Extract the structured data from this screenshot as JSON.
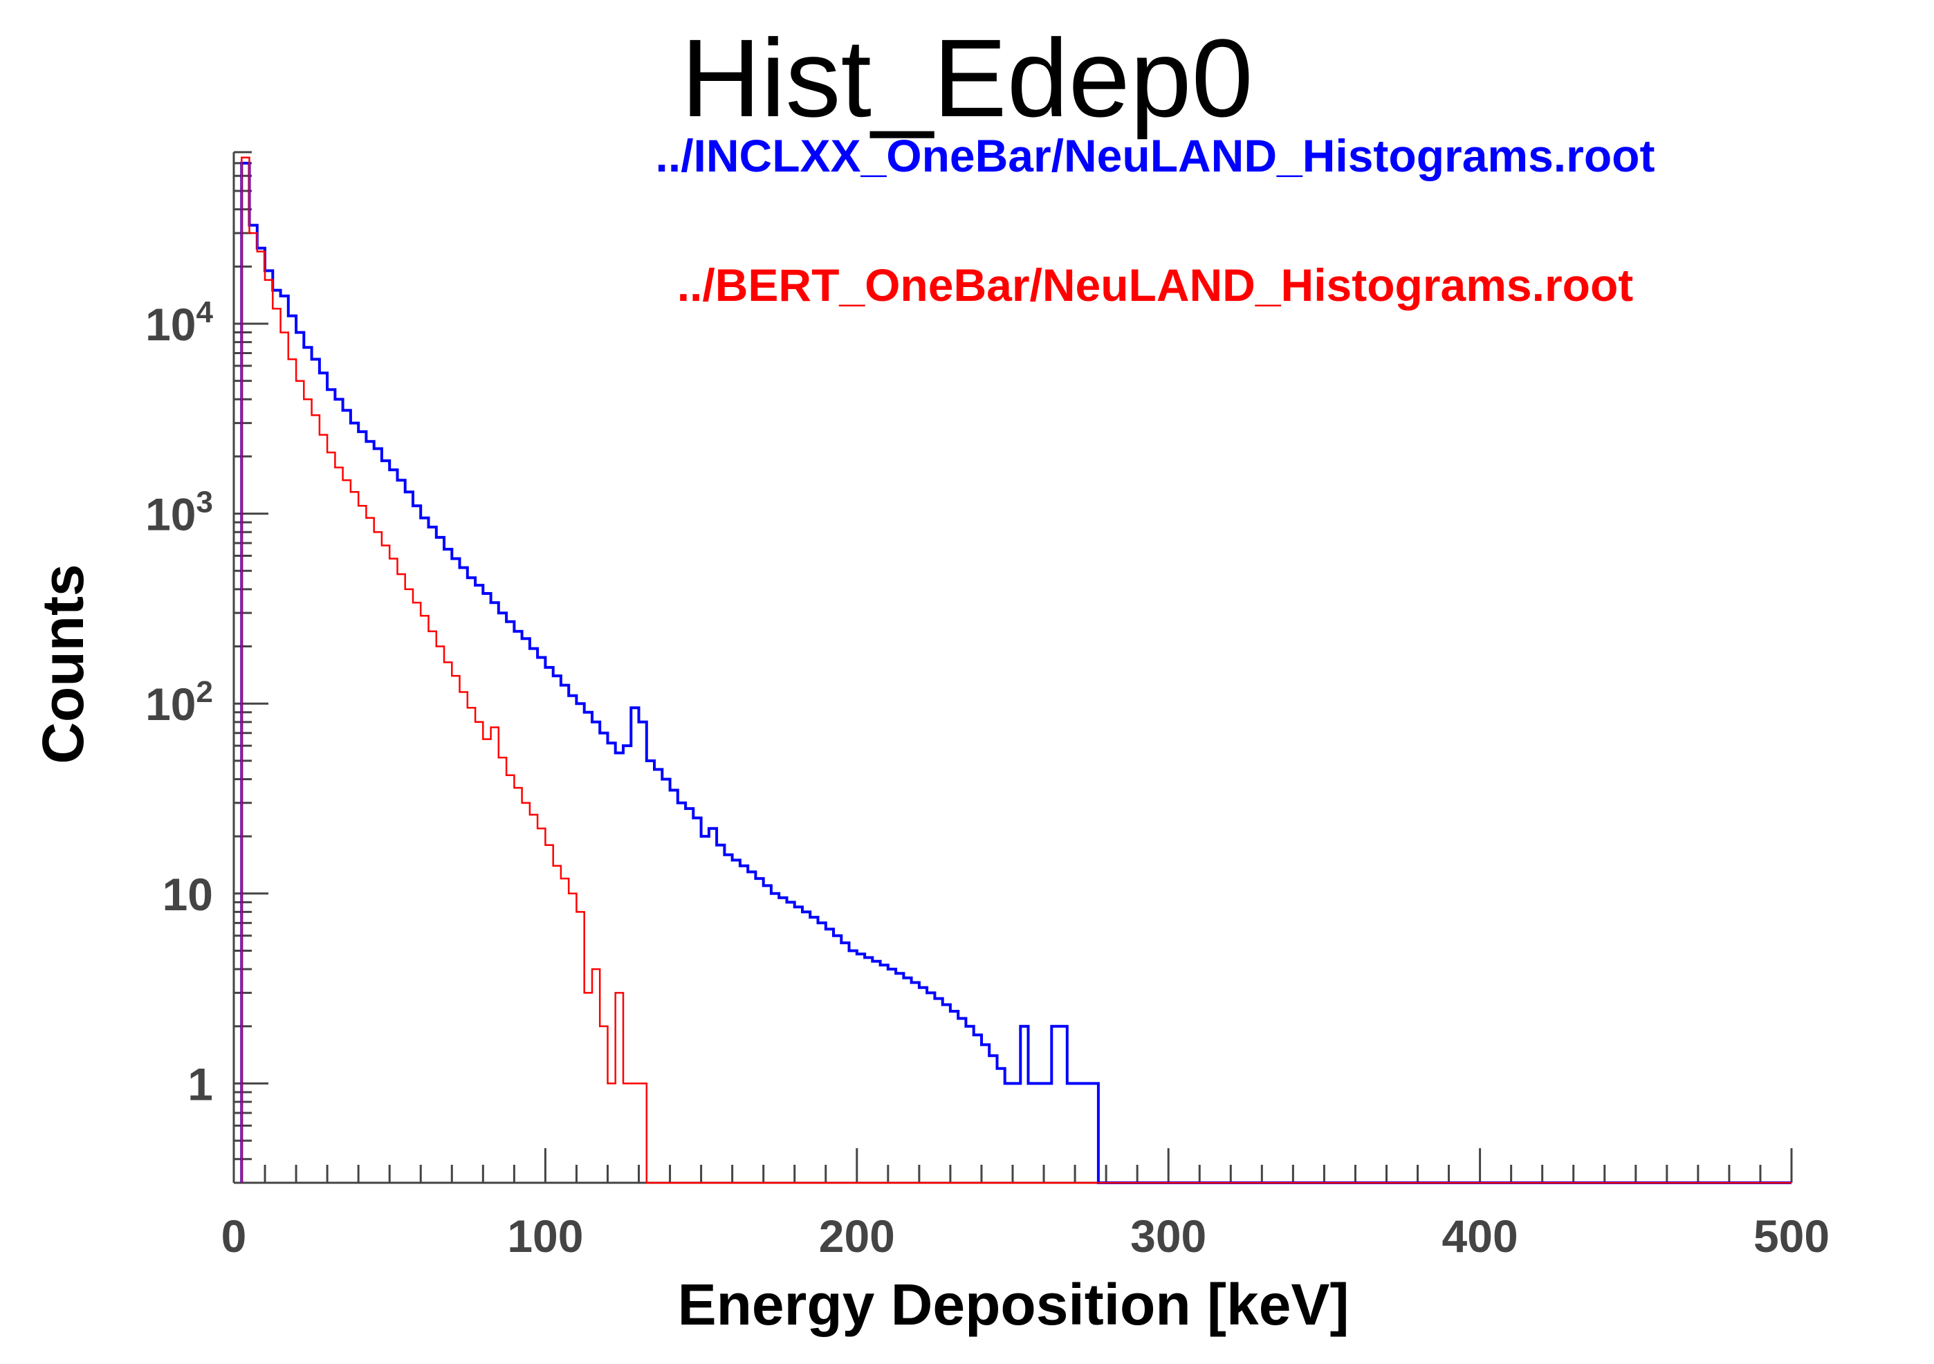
{
  "chart_data": {
    "type": "line",
    "title": "Hist_Edep0",
    "xlabel": "Energy Deposition [keV]",
    "ylabel": "Counts",
    "xlim": [
      0,
      500
    ],
    "ylim": [
      0.3,
      80000
    ],
    "yscale": "log",
    "x_ticks": [
      "0",
      "100",
      "200",
      "300",
      "400",
      "500"
    ],
    "y_ticks": [
      {
        "value": 1,
        "label": "1"
      },
      {
        "value": 10,
        "label": "10"
      },
      {
        "value": 100,
        "base": "10",
        "exp": "2"
      },
      {
        "value": 1000,
        "base": "10",
        "exp": "3"
      },
      {
        "value": 10000,
        "base": "10",
        "exp": "4"
      }
    ],
    "legend_placement": "top-right",
    "bin_width": 2.5,
    "series": [
      {
        "name": "../INCLXX_OneBar/NeuLAND_Histograms.root",
        "color": "#0000ff",
        "x_start": 2.5,
        "values": [
          70000,
          33000,
          25000,
          19000,
          15000,
          14000,
          11000,
          9000,
          7500,
          6500,
          5500,
          4500,
          4000,
          3500,
          3000,
          2700,
          2400,
          2200,
          1900,
          1700,
          1500,
          1300,
          1100,
          950,
          850,
          750,
          650,
          580,
          520,
          460,
          420,
          380,
          340,
          300,
          270,
          240,
          220,
          195,
          175,
          155,
          140,
          125,
          110,
          100,
          90,
          80,
          70,
          62,
          55,
          60,
          95,
          80,
          50,
          45,
          40,
          35,
          30,
          28,
          25,
          20,
          22,
          18,
          16,
          15,
          14,
          13,
          12,
          11,
          10,
          9.5,
          9,
          8.5,
          8,
          7.5,
          7,
          6.5,
          6,
          5.5,
          5,
          4.8,
          4.6,
          4.4,
          4.2,
          4,
          3.8,
          3.6,
          3.4,
          3.2,
          3,
          2.8,
          2.6,
          2.4,
          2.2,
          2,
          1.8,
          1.6,
          1.4,
          1.2,
          1,
          1,
          2,
          1,
          1,
          1,
          2,
          2,
          1,
          1,
          1,
          1
        ]
      },
      {
        "name": "../BERT_OneBar/NeuLAND_Histograms.root",
        "color": "#ff0000",
        "x_start": 2.5,
        "values": [
          75000,
          30000,
          24000,
          17000,
          12000,
          9000,
          6500,
          5000,
          4000,
          3300,
          2600,
          2100,
          1750,
          1500,
          1300,
          1100,
          950,
          800,
          680,
          580,
          480,
          400,
          340,
          290,
          240,
          200,
          165,
          140,
          115,
          95,
          80,
          65,
          75,
          52,
          42,
          36,
          30,
          26,
          22,
          18,
          14,
          12,
          10,
          8,
          3,
          4,
          2,
          1,
          3,
          1,
          1,
          1
        ]
      }
    ]
  }
}
